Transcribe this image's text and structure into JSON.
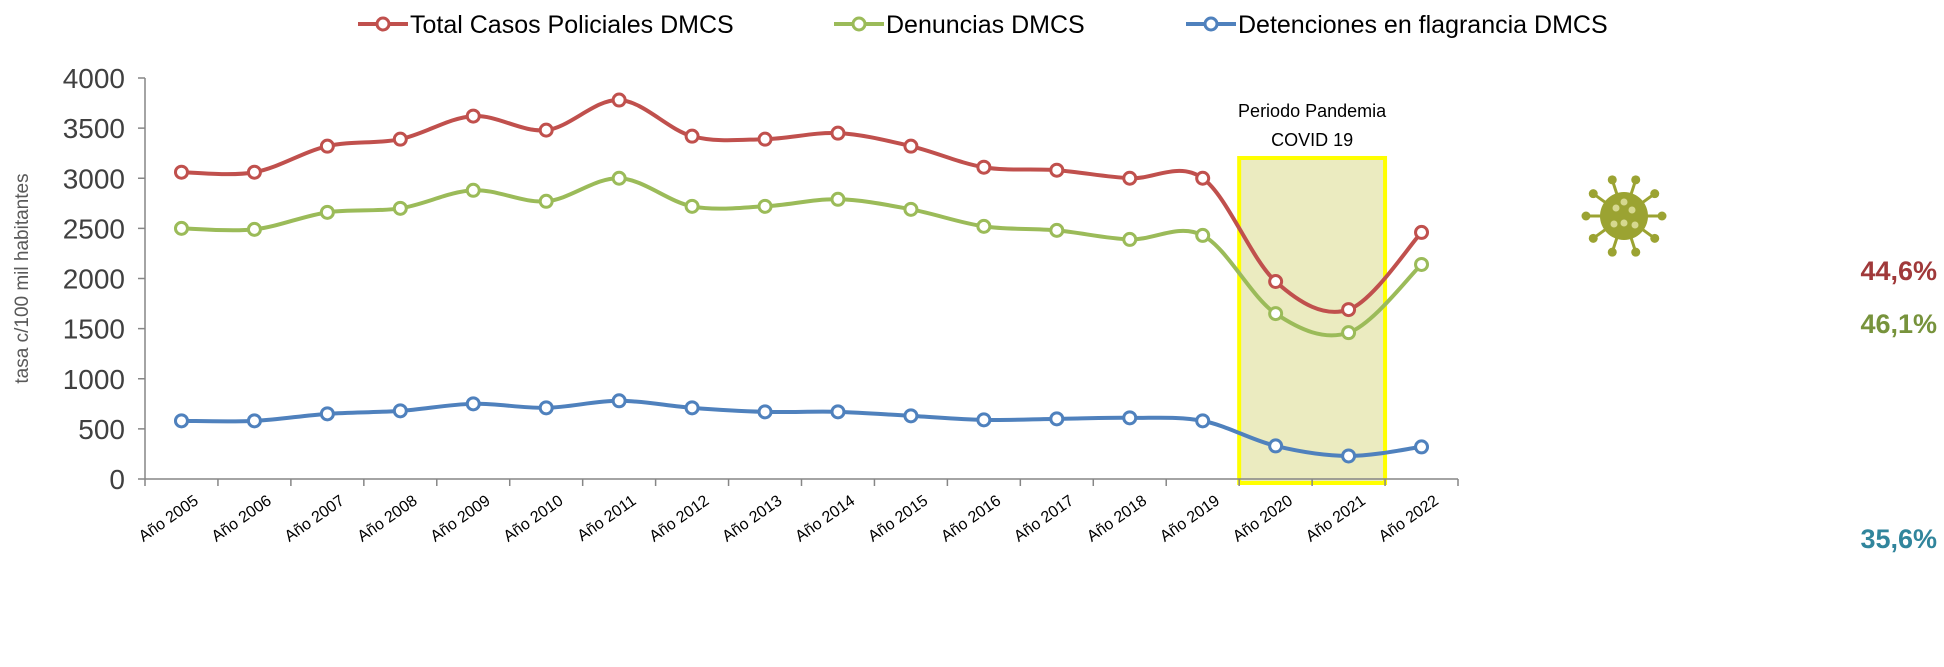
{
  "chart_data": {
    "type": "line",
    "title": "",
    "xlabel": "",
    "ylabel": "tasa c/100 mil habitantes",
    "ylim": [
      0,
      4000
    ],
    "yticks": [
      0,
      500,
      1000,
      1500,
      2000,
      2500,
      3000,
      3500,
      4000
    ],
    "grid": false,
    "legend_position": "top",
    "categories": [
      "Año 2005",
      "Año 2006",
      "Año 2007",
      "Año 2008",
      "Año 2009",
      "Año 2010",
      "Año 2011",
      "Año 2012",
      "Año 2013",
      "Año 2014",
      "Año 2015",
      "Año 2016",
      "Año 2017",
      "Año 2018",
      "Año 2019",
      "Año 2020",
      "Año 2021",
      "Año 2022"
    ],
    "series": [
      {
        "name": "Total Casos Policiales DMCS",
        "color": "#C0504D",
        "values": [
          3060,
          3060,
          3320,
          3390,
          3620,
          3480,
          3780,
          3420,
          3390,
          3450,
          3320,
          3110,
          3080,
          3000,
          3000,
          1970,
          1690,
          2460
        ]
      },
      {
        "name": "Denuncias DMCS",
        "color": "#9BBB59",
        "values": [
          2500,
          2490,
          2660,
          2700,
          2880,
          2770,
          3000,
          2720,
          2720,
          2790,
          2690,
          2520,
          2480,
          2390,
          2430,
          1650,
          1460,
          2140
        ]
      },
      {
        "name": "Detenciones en flagrancia DMCS",
        "color": "#4F81BD",
        "values": [
          580,
          580,
          650,
          680,
          750,
          710,
          780,
          710,
          670,
          670,
          630,
          590,
          600,
          610,
          580,
          330,
          230,
          320
        ]
      }
    ],
    "highlight": {
      "label_line1": "Periodo Pandemia",
      "label_line2": "COVID 19",
      "from": "Año 2020",
      "to": "Año 2021",
      "icon": "virus-icon",
      "fill": "#EBEBC0",
      "border": "#FFFF00"
    },
    "annotations": [
      {
        "text": "44,6%",
        "color": "#A0393A"
      },
      {
        "text": "46,1%",
        "color": "#77933C"
      },
      {
        "text": "35,6%",
        "color": "#31859C"
      }
    ]
  }
}
